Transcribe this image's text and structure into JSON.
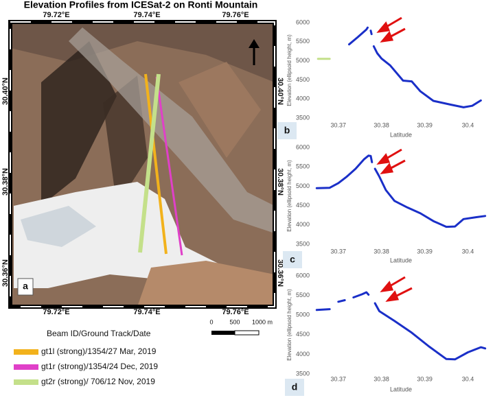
{
  "title": "Elevation Profiles from ICESat-2 on Ronti Mountain",
  "map": {
    "top_labels": [
      "79.72°E",
      "79.74°E",
      "79.76°E"
    ],
    "bottom_labels": [
      "79.72°E",
      "79.74°E",
      "79.76°E"
    ],
    "left_labels": [
      "30.40°N",
      "30.38°N",
      "30.36°N"
    ],
    "right_labels": [
      "30.40°N",
      "30.38°N",
      "30.36°N"
    ],
    "panel_label": "a",
    "scale_labels": [
      "0",
      "500",
      "1000 m"
    ]
  },
  "legend": {
    "title": "Beam ID/Ground Track/Date",
    "items": [
      {
        "label": "gt1l (strong)/1354/27 Mar, 2019",
        "color": "#f2b21c"
      },
      {
        "label": "gt1r (strong)/1354/24 Dec, 2019",
        "color": "#e040c8"
      },
      {
        "label": "gt2r (strong)/ 706/12 Nov, 2019",
        "color": "#c4e08a"
      }
    ]
  },
  "chart_data": [
    {
      "type": "line",
      "panel_label": "b",
      "xlabel": "Latitude",
      "ylabel": "Elevation (ellipsoid height, m)",
      "xlim": [
        30.364,
        30.405
      ],
      "xticks": [
        30.37,
        30.38,
        30.39,
        30.4
      ],
      "ylim": [
        3500,
        6000
      ],
      "yticks": [
        3500,
        4000,
        4500,
        5000,
        5500,
        6000
      ],
      "series": [
        {
          "color": "#1a2fc8",
          "x": [
            30.3725,
            30.3745,
            30.3765,
            30.3768,
            null,
            30.3775,
            30.3777,
            null,
            30.3782,
            30.379,
            30.38,
            30.382,
            30.385,
            30.387,
            30.389,
            30.392,
            30.396,
            30.399,
            30.401,
            30.403
          ],
          "values": [
            5430,
            5620,
            5820,
            5870,
            null,
            5790,
            5700,
            null,
            5380,
            5200,
            5060,
            4880,
            4480,
            4460,
            4200,
            3950,
            3850,
            3780,
            3820,
            3960
          ]
        },
        {
          "color": "#c4e08a",
          "x": [
            30.3653,
            30.368
          ],
          "values": [
            5050,
            5050
          ]
        }
      ]
    },
    {
      "type": "line",
      "panel_label": "c",
      "xlabel": "Latitude",
      "ylabel": "Elevation (ellipsoid height, m)",
      "xlim": [
        30.364,
        30.405
      ],
      "xticks": [
        30.37,
        30.38,
        30.39,
        30.4
      ],
      "ylim": [
        3500,
        6000
      ],
      "yticks": [
        3500,
        4000,
        4500,
        5000,
        5500,
        6000
      ],
      "series": [
        {
          "color": "#1a2fc8",
          "x": [
            30.365,
            30.368,
            30.37,
            30.372,
            30.374,
            30.376,
            30.377,
            30.3775,
            30.3778,
            null,
            30.3785,
            30.3795,
            30.381,
            30.383,
            30.386,
            30.389,
            30.392,
            30.395,
            30.397,
            30.399,
            30.402,
            30.404
          ],
          "values": [
            4950,
            4960,
            5080,
            5250,
            5450,
            5700,
            5790,
            5780,
            5620,
            null,
            5450,
            5250,
            4900,
            4620,
            4450,
            4300,
            4100,
            3950,
            3960,
            4150,
            4200,
            4230
          ]
        }
      ]
    },
    {
      "type": "line",
      "panel_label": "d",
      "xlabel": "Latitude",
      "ylabel": "Elevation (ellipsoid height, m)",
      "xlim": [
        30.364,
        30.405
      ],
      "xticks": [
        30.37,
        30.38,
        30.39,
        30.4
      ],
      "ylim": [
        3500,
        6000
      ],
      "yticks": [
        3500,
        4000,
        4500,
        5000,
        5500,
        6000
      ],
      "series": [
        {
          "color": "#1a2fc8",
          "x": [
            30.365,
            30.368,
            null,
            30.37,
            30.3715,
            null,
            30.3735,
            30.3755,
            30.3765,
            30.377,
            null,
            30.3785,
            30.3795,
            30.383,
            30.387,
            30.391,
            30.395,
            30.397,
            30.4,
            30.403,
            30.404
          ],
          "values": [
            5130,
            5150,
            null,
            5340,
            5380,
            null,
            5450,
            5530,
            5580,
            5520,
            null,
            5300,
            5100,
            4850,
            4550,
            4200,
            3880,
            3870,
            4050,
            4180,
            4150
          ]
        }
      ]
    }
  ]
}
